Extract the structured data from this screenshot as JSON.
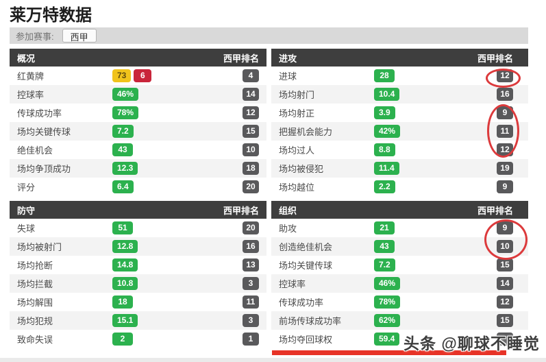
{
  "page": {
    "title": "莱万特数据",
    "competition_label": "参加赛事:",
    "competition_value": "西甲",
    "rank_header": "西甲排名",
    "watermark": "头条 @聊球不睡觉"
  },
  "colors": {
    "green": "#2cb14e",
    "yellow_card": "#f0c31c",
    "red_card": "#c9253a",
    "header_bg": "#3e3e3e",
    "rank_badge_bg": "#59595b",
    "bar_bg": "#d9d9d9",
    "annotation": "#dc3a3c",
    "underline": "#e73327"
  },
  "panels": [
    {
      "id": "overview",
      "title": "概况",
      "rows": [
        {
          "label": "红黄牌",
          "type": "cards",
          "value": "73",
          "value2": "6",
          "rank": "4"
        },
        {
          "label": "控球率",
          "value": "46%",
          "rank": "14"
        },
        {
          "label": "传球成功率",
          "value": "78%",
          "rank": "12"
        },
        {
          "label": "场均关键传球",
          "value": "7.2",
          "rank": "15"
        },
        {
          "label": "绝佳机会",
          "value": "43",
          "rank": "10"
        },
        {
          "label": "场均争顶成功",
          "value": "12.3",
          "rank": "18"
        },
        {
          "label": "评分",
          "value": "6.4",
          "rank": "20"
        }
      ]
    },
    {
      "id": "attack",
      "title": "进攻",
      "rows": [
        {
          "label": "进球",
          "value": "28",
          "rank": "12"
        },
        {
          "label": "场均射门",
          "value": "10.4",
          "rank": "16"
        },
        {
          "label": "场均射正",
          "value": "3.9",
          "rank": "9"
        },
        {
          "label": "把握机会能力",
          "value": "42%",
          "rank": "11"
        },
        {
          "label": "场均过人",
          "value": "8.8",
          "rank": "12"
        },
        {
          "label": "场均被侵犯",
          "value": "11.4",
          "rank": "19"
        },
        {
          "label": "场均越位",
          "value": "2.2",
          "rank": "9"
        }
      ]
    },
    {
      "id": "defense",
      "title": "防守",
      "rows": [
        {
          "label": "失球",
          "value": "51",
          "rank": "20"
        },
        {
          "label": "场均被射门",
          "value": "12.8",
          "rank": "16"
        },
        {
          "label": "场均抢断",
          "value": "14.8",
          "rank": "13"
        },
        {
          "label": "场均拦截",
          "value": "10.8",
          "rank": "3"
        },
        {
          "label": "场均解围",
          "value": "18",
          "rank": "11"
        },
        {
          "label": "场均犯规",
          "value": "15.1",
          "rank": "3"
        },
        {
          "label": "致命失误",
          "value": "2",
          "rank": "1"
        }
      ]
    },
    {
      "id": "organization",
      "title": "组织",
      "rows": [
        {
          "label": "助攻",
          "value": "21",
          "rank": "9"
        },
        {
          "label": "创造绝佳机会",
          "value": "43",
          "rank": "10"
        },
        {
          "label": "场均关键传球",
          "value": "7.2",
          "rank": "15"
        },
        {
          "label": "控球率",
          "value": "46%",
          "rank": "14"
        },
        {
          "label": "传球成功率",
          "value": "78%",
          "rank": "12"
        },
        {
          "label": "前场传球成功率",
          "value": "62%",
          "rank": "15"
        },
        {
          "label": "场均夺回球权",
          "value": "59.4",
          "rank": ""
        }
      ]
    }
  ]
}
